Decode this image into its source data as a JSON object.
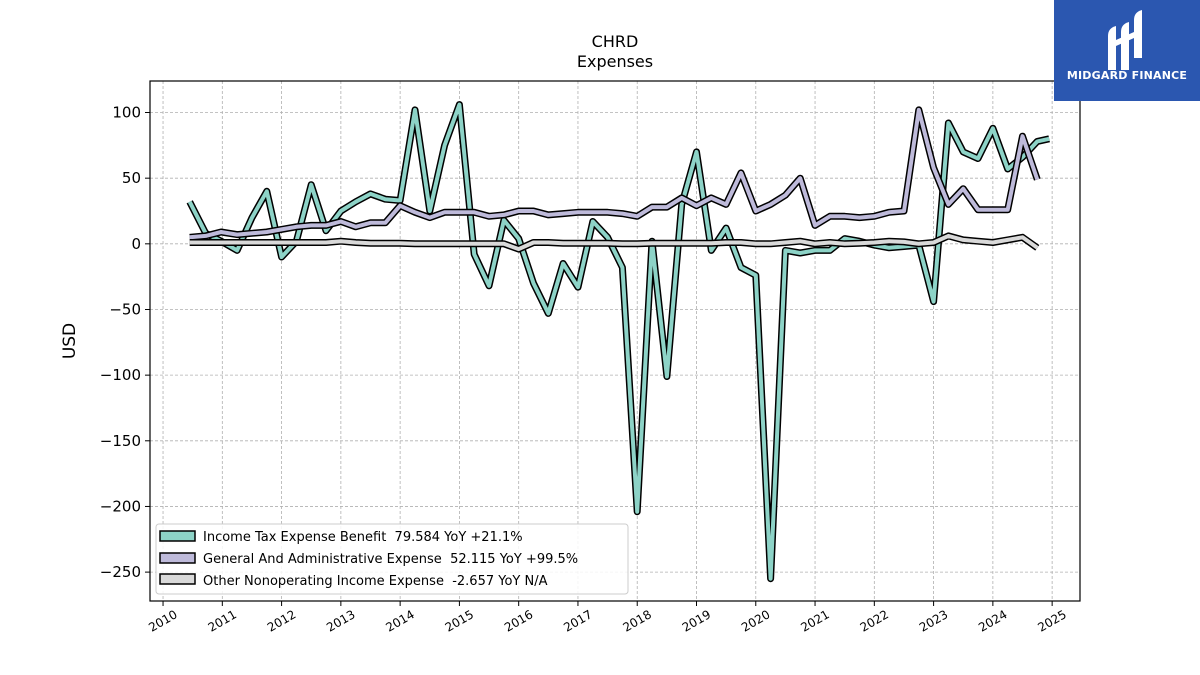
{
  "logo": {
    "text": "MIDGARD FINANCE"
  },
  "chart_data": {
    "type": "line",
    "title": "CHRD",
    "subtitle": "Expenses",
    "xlabel": "",
    "ylabel": "USD",
    "xlim": [
      2009.78,
      2025.47
    ],
    "ylim": [
      -272,
      124
    ],
    "x_ticks": [
      "2010",
      "2011",
      "2012",
      "2013",
      "2014",
      "2015",
      "2016",
      "2017",
      "2018",
      "2019",
      "2020",
      "2021",
      "2022",
      "2023",
      "2024",
      "2025"
    ],
    "y_ticks": [
      100,
      50,
      0,
      -50,
      -100,
      -150,
      -200,
      -250
    ],
    "y_tick_labels": [
      "100",
      "50",
      "0",
      "−50",
      "−100",
      "−150",
      "−200",
      "−250"
    ],
    "grid": true,
    "legend_position": "lower-left",
    "series": [
      {
        "name": "Income Tax Expense Benefit",
        "legend_label": "Income Tax Expense Benefit  79.584 YoY +21.1%",
        "color": "#8dd3c7",
        "points": [
          [
            2010.45,
            32
          ],
          [
            2010.72,
            8
          ],
          [
            2010.98,
            2
          ],
          [
            2011.25,
            -5
          ],
          [
            2011.5,
            20
          ],
          [
            2011.75,
            40
          ],
          [
            2012.0,
            -10
          ],
          [
            2012.25,
            2
          ],
          [
            2012.5,
            45
          ],
          [
            2012.75,
            10
          ],
          [
            2013.0,
            25
          ],
          [
            2013.25,
            32
          ],
          [
            2013.5,
            38
          ],
          [
            2013.75,
            34
          ],
          [
            2014.0,
            33
          ],
          [
            2014.25,
            102
          ],
          [
            2014.5,
            25
          ],
          [
            2014.75,
            75
          ],
          [
            2015.0,
            106
          ],
          [
            2015.25,
            -8
          ],
          [
            2015.5,
            -32
          ],
          [
            2015.75,
            18
          ],
          [
            2016.0,
            4
          ],
          [
            2016.25,
            -30
          ],
          [
            2016.5,
            -53
          ],
          [
            2016.75,
            -15
          ],
          [
            2017.0,
            -33
          ],
          [
            2017.25,
            17
          ],
          [
            2017.5,
            5
          ],
          [
            2017.75,
            -18
          ],
          [
            2018.0,
            -204
          ],
          [
            2018.25,
            2
          ],
          [
            2018.5,
            -101
          ],
          [
            2018.75,
            30
          ],
          [
            2019.0,
            70
          ],
          [
            2019.25,
            -5
          ],
          [
            2019.5,
            12
          ],
          [
            2019.75,
            -18
          ],
          [
            2020.0,
            -24
          ],
          [
            2020.25,
            -255
          ],
          [
            2020.5,
            -5
          ],
          [
            2020.75,
            -7
          ],
          [
            2021.0,
            -5
          ],
          [
            2021.25,
            -5
          ],
          [
            2021.5,
            4
          ],
          [
            2021.75,
            2
          ],
          [
            2022.0,
            -1
          ],
          [
            2022.25,
            -3
          ],
          [
            2022.5,
            -2
          ],
          [
            2022.75,
            -1
          ],
          [
            2023.0,
            -44
          ],
          [
            2023.25,
            92
          ],
          [
            2023.5,
            70
          ],
          [
            2023.75,
            65
          ],
          [
            2024.0,
            88
          ],
          [
            2024.25,
            57
          ],
          [
            2024.5,
            66
          ],
          [
            2024.75,
            78
          ],
          [
            2024.95,
            80
          ]
        ]
      },
      {
        "name": "General And Administrative Expense",
        "legend_label": "General And Administrative Expense  52.115 YoY +99.5%",
        "color": "#bebada",
        "points": [
          [
            2010.45,
            5
          ],
          [
            2010.72,
            6
          ],
          [
            2010.98,
            9
          ],
          [
            2011.25,
            7
          ],
          [
            2011.5,
            8
          ],
          [
            2011.75,
            9
          ],
          [
            2012.0,
            11
          ],
          [
            2012.25,
            13
          ],
          [
            2012.5,
            14
          ],
          [
            2012.75,
            14
          ],
          [
            2013.0,
            17
          ],
          [
            2013.25,
            13
          ],
          [
            2013.5,
            16
          ],
          [
            2013.75,
            16
          ],
          [
            2014.0,
            29
          ],
          [
            2014.25,
            24
          ],
          [
            2014.5,
            20
          ],
          [
            2014.75,
            24
          ],
          [
            2015.0,
            24
          ],
          [
            2015.25,
            24
          ],
          [
            2015.5,
            21
          ],
          [
            2015.75,
            22
          ],
          [
            2016.0,
            25
          ],
          [
            2016.25,
            25
          ],
          [
            2016.5,
            22
          ],
          [
            2016.75,
            23
          ],
          [
            2017.0,
            24
          ],
          [
            2017.25,
            24
          ],
          [
            2017.5,
            24
          ],
          [
            2017.75,
            23
          ],
          [
            2018.0,
            21
          ],
          [
            2018.25,
            28
          ],
          [
            2018.5,
            28
          ],
          [
            2018.75,
            35
          ],
          [
            2019.0,
            29
          ],
          [
            2019.25,
            35
          ],
          [
            2019.5,
            30
          ],
          [
            2019.75,
            54
          ],
          [
            2020.0,
            25
          ],
          [
            2020.25,
            30
          ],
          [
            2020.5,
            37
          ],
          [
            2020.75,
            50
          ],
          [
            2021.0,
            14
          ],
          [
            2021.25,
            21
          ],
          [
            2021.5,
            21
          ],
          [
            2021.75,
            20
          ],
          [
            2022.0,
            21
          ],
          [
            2022.25,
            24
          ],
          [
            2022.5,
            25
          ],
          [
            2022.75,
            102
          ],
          [
            2023.0,
            58
          ],
          [
            2023.25,
            30
          ],
          [
            2023.5,
            42
          ],
          [
            2023.75,
            26
          ],
          [
            2024.0,
            26
          ],
          [
            2024.25,
            26
          ],
          [
            2024.5,
            82
          ],
          [
            2024.75,
            49
          ]
        ]
      },
      {
        "name": "Other Nonoperating Income Expense",
        "legend_label": "Other Nonoperating Income Expense  -2.657 YoY N/A",
        "color": "#d9d9d9",
        "points": [
          [
            2010.45,
            1
          ],
          [
            2010.72,
            1
          ],
          [
            2010.98,
            1
          ],
          [
            2011.25,
            1
          ],
          [
            2011.5,
            1
          ],
          [
            2011.75,
            1
          ],
          [
            2012.0,
            1
          ],
          [
            2012.25,
            1
          ],
          [
            2012.5,
            1
          ],
          [
            2012.75,
            1
          ],
          [
            2013.0,
            2
          ],
          [
            2013.25,
            1
          ],
          [
            2013.5,
            0.5
          ],
          [
            2013.75,
            0.5
          ],
          [
            2014.0,
            0.5
          ],
          [
            2014.25,
            0
          ],
          [
            2014.5,
            0
          ],
          [
            2014.75,
            0
          ],
          [
            2015.0,
            0
          ],
          [
            2015.25,
            0
          ],
          [
            2015.5,
            0
          ],
          [
            2015.75,
            0
          ],
          [
            2016.0,
            -4
          ],
          [
            2016.25,
            1
          ],
          [
            2016.5,
            1
          ],
          [
            2016.75,
            0.5
          ],
          [
            2017.0,
            0.5
          ],
          [
            2017.25,
            0.5
          ],
          [
            2017.5,
            0.5
          ],
          [
            2017.75,
            0
          ],
          [
            2018.0,
            0
          ],
          [
            2018.25,
            0.5
          ],
          [
            2018.5,
            0.5
          ],
          [
            2018.75,
            0.5
          ],
          [
            2019.0,
            0.5
          ],
          [
            2019.25,
            0.5
          ],
          [
            2019.5,
            1
          ],
          [
            2019.75,
            1
          ],
          [
            2020.0,
            0
          ],
          [
            2020.25,
            0
          ],
          [
            2020.5,
            1
          ],
          [
            2020.75,
            2
          ],
          [
            2021.0,
            0
          ],
          [
            2021.25,
            1
          ],
          [
            2021.5,
            0
          ],
          [
            2021.75,
            0.5
          ],
          [
            2022.0,
            1
          ],
          [
            2022.25,
            2
          ],
          [
            2022.5,
            1.5
          ],
          [
            2022.75,
            0
          ],
          [
            2023.0,
            1
          ],
          [
            2023.25,
            6
          ],
          [
            2023.5,
            3
          ],
          [
            2023.75,
            2
          ],
          [
            2024.0,
            1
          ],
          [
            2024.25,
            3
          ],
          [
            2024.5,
            5
          ],
          [
            2024.75,
            -3
          ]
        ]
      }
    ]
  }
}
